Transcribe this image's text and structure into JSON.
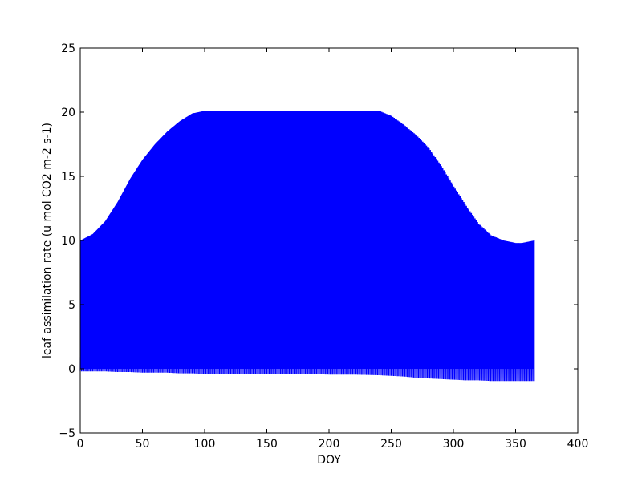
{
  "chart_data": {
    "type": "line",
    "title": "",
    "xlabel": "DOY",
    "ylabel": "leaf assimilation rate (u mol CO2 m-2 s-1)",
    "xlim": [
      0,
      400
    ],
    "ylim": [
      -5,
      25
    ],
    "xticks": [
      0,
      50,
      100,
      150,
      200,
      250,
      300,
      350,
      400
    ],
    "yticks": [
      -5,
      0,
      5,
      10,
      15,
      20,
      25
    ],
    "grid": false,
    "legend": "none",
    "series": [
      {
        "color": "#0000ff",
        "description_of_pattern": "",
        "x": [
          0,
          10,
          20,
          30,
          40,
          50,
          60,
          70,
          80,
          90,
          100,
          110,
          120,
          140,
          160,
          180,
          200,
          220,
          240,
          250,
          260,
          270,
          280,
          290,
          300,
          310,
          320,
          330,
          340,
          350,
          355,
          360,
          365
        ],
        "upper": [
          10.0,
          10.5,
          11.5,
          13.0,
          14.8,
          16.3,
          17.5,
          18.5,
          19.3,
          19.9,
          20.1,
          20.1,
          20.1,
          20.1,
          20.1,
          20.1,
          20.1,
          20.1,
          20.1,
          19.7,
          19.0,
          18.2,
          17.2,
          15.8,
          14.2,
          12.7,
          11.3,
          10.4,
          10.0,
          9.8,
          9.8,
          9.9,
          10.0
        ],
        "lower": [
          -0.2,
          -0.2,
          -0.2,
          -0.25,
          -0.25,
          -0.3,
          -0.3,
          -0.3,
          -0.35,
          -0.35,
          -0.4,
          -0.4,
          -0.4,
          -0.4,
          -0.4,
          -0.4,
          -0.45,
          -0.45,
          -0.5,
          -0.55,
          -0.6,
          -0.7,
          -0.75,
          -0.8,
          -0.85,
          -0.9,
          -0.9,
          -0.95,
          -0.95,
          -0.95,
          -0.95,
          -0.95,
          -0.95
        ]
      }
    ]
  }
}
